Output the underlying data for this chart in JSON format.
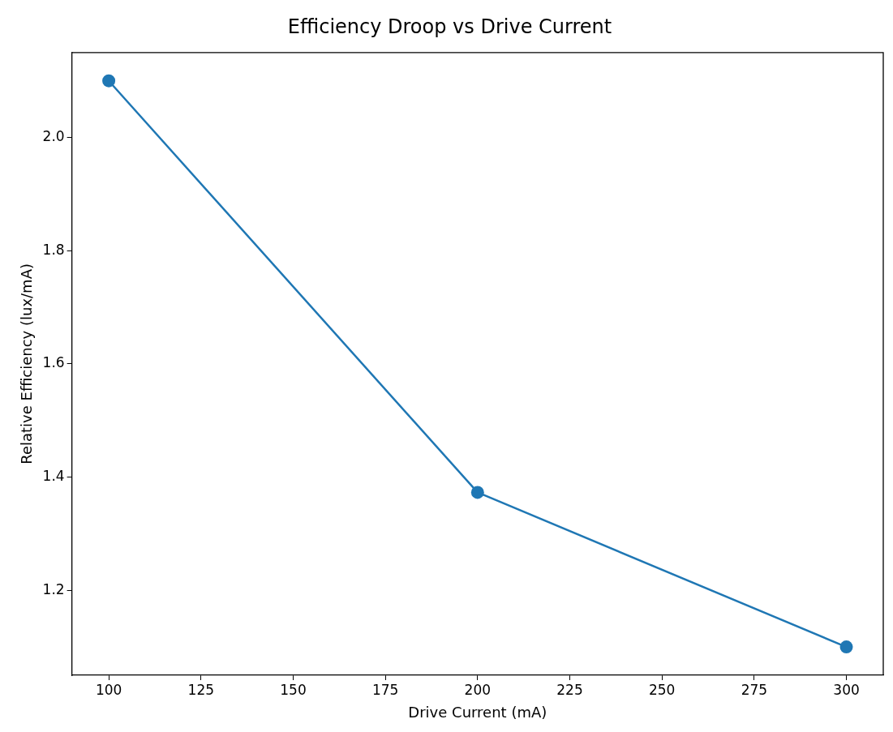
{
  "chart_data": {
    "type": "line",
    "title": "Efficiency Droop vs Drive Current",
    "xlabel": "Drive Current (mA)",
    "ylabel": "Relative Efficiency (lux/mA)",
    "x": [
      100,
      200,
      300
    ],
    "series": [
      {
        "color": "#1f77b4",
        "values": [
          2.1,
          1.373,
          1.1
        ]
      }
    ],
    "xlim": [
      90,
      310
    ],
    "xticks": [
      100,
      125,
      150,
      175,
      200,
      225,
      250,
      275,
      300
    ],
    "ylim": [
      1.05,
      2.15
    ],
    "yticks": [
      {
        "value": 1.2,
        "label": "1.2"
      },
      {
        "value": 1.4,
        "label": "1.4"
      },
      {
        "value": 1.6,
        "label": "1.6"
      },
      {
        "value": 1.8,
        "label": "1.8"
      },
      {
        "value": 2.0,
        "label": "2.0"
      }
    ],
    "grid": false,
    "legend": false,
    "marker": "circle",
    "line_style": "solid"
  }
}
